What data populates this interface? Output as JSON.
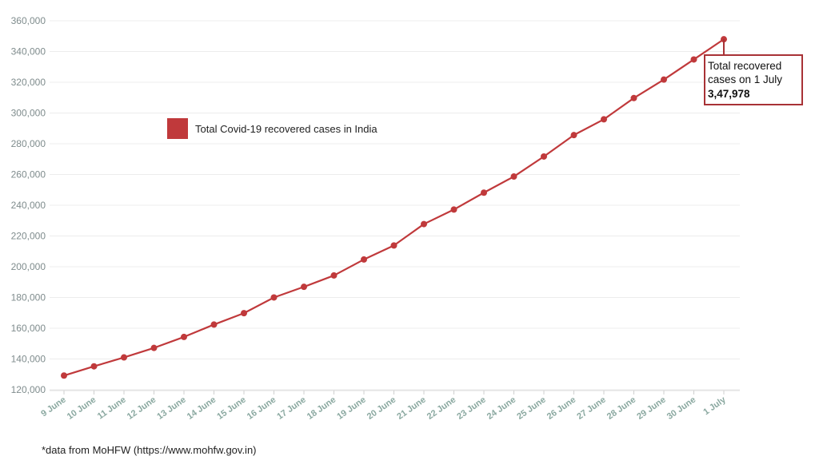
{
  "chart_data": {
    "type": "line",
    "x": [
      "9 June",
      "10 June",
      "11 June",
      "12 June",
      "13 June",
      "14 June",
      "15 June",
      "16 June",
      "17 June",
      "18 June",
      "19 June",
      "20 June",
      "21 June",
      "22 June",
      "23 June",
      "24 June",
      "25 June",
      "26 June",
      "27 June",
      "28 June",
      "29 June",
      "30 June",
      "1 July"
    ],
    "series": [
      {
        "name": "Total Covid-19 recovered cases in India",
        "color": "#c0393b",
        "values": [
          129215,
          135206,
          141029,
          147195,
          154330,
          162379,
          169798,
          180013,
          186935,
          194325,
          204711,
          213831,
          227756,
          237196,
          248190,
          258685,
          271697,
          285637,
          295881,
          309713,
          321723,
          334822,
          347978
        ]
      }
    ],
    "yticks": [
      "120,000",
      "140,000",
      "160,000",
      "180,000",
      "200,000",
      "220,000",
      "240,000",
      "260,000",
      "280,000",
      "300,000",
      "320,000",
      "340,000",
      "360,000"
    ],
    "ylim": [
      120000,
      360000
    ],
    "grid": true,
    "legend": {
      "label": "Total Covid-19 recovered cases in India",
      "placement": "top-left"
    },
    "annotation": {
      "line1": "Total recovered",
      "line2": "cases on 1 July",
      "value": "3,47,978",
      "border_color": "#a83236"
    }
  },
  "footnote": "*data from MoHFW (https://www.mohfw.gov.in)"
}
